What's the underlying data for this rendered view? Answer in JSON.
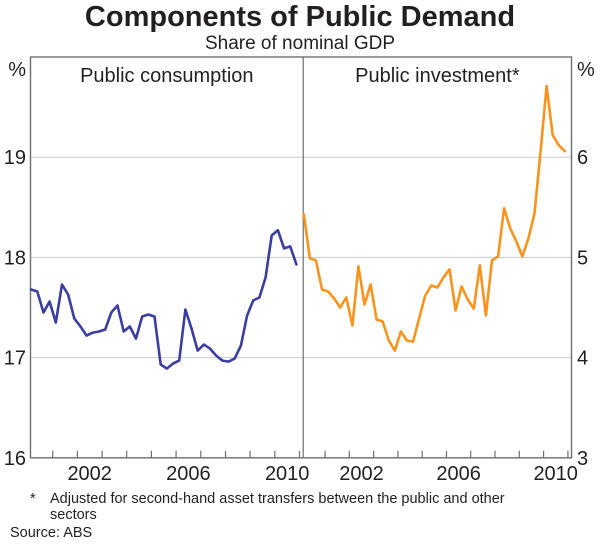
{
  "header": {
    "title": "Components of Public Demand",
    "subtitle": "Share of nominal GDP"
  },
  "chart_data": {
    "type": "line",
    "title": "Components of Public Demand",
    "subtitle": "Share of nominal GDP",
    "frequency": "quarterly",
    "grid": true,
    "x": [
      2000.125,
      2000.375,
      2000.625,
      2000.875,
      2001.125,
      2001.375,
      2001.625,
      2001.875,
      2002.125,
      2002.375,
      2002.625,
      2002.875,
      2003.125,
      2003.375,
      2003.625,
      2003.875,
      2004.125,
      2004.375,
      2004.625,
      2004.875,
      2005.125,
      2005.375,
      2005.625,
      2005.875,
      2006.125,
      2006.375,
      2006.625,
      2006.875,
      2007.125,
      2007.375,
      2007.625,
      2007.875,
      2008.125,
      2008.375,
      2008.625,
      2008.875,
      2009.125,
      2009.375,
      2009.625,
      2009.875,
      2010.125,
      2010.375,
      2010.625,
      2010.875
    ],
    "x_tick_years": [
      2001,
      2002,
      2003,
      2004,
      2005,
      2006,
      2007,
      2008,
      2009,
      2010,
      2011
    ],
    "x_tick_labels": [
      "2002",
      "2006",
      "2010"
    ],
    "panels": [
      {
        "label": "Public consumption",
        "unit": "%",
        "ylim": [
          16,
          20
        ],
        "yticks": [
          16,
          17,
          18,
          19
        ],
        "series": [
          {
            "name": "Public consumption",
            "color": "#3B3EA1",
            "values": [
              17.68,
              17.66,
              17.45,
              17.56,
              17.35,
              17.73,
              17.63,
              17.39,
              17.31,
              17.22,
              17.25,
              17.26,
              17.28,
              17.45,
              17.52,
              17.26,
              17.31,
              17.19,
              17.41,
              17.43,
              17.41,
              16.93,
              16.89,
              16.94,
              16.97,
              17.48,
              17.29,
              17.07,
              17.13,
              17.09,
              17.02,
              16.97,
              16.96,
              16.99,
              17.12,
              17.42,
              17.57,
              17.6,
              17.8,
              18.22,
              18.27,
              18.09,
              18.11,
              17.93
            ]
          }
        ]
      },
      {
        "label": "Public investment*",
        "unit": "%",
        "ylim": [
          3,
          7
        ],
        "yticks": [
          3,
          4,
          5,
          6
        ],
        "series": [
          {
            "name": "Public investment",
            "color": "#F8941D",
            "values": [
              5.43,
              4.99,
              4.97,
              4.68,
              4.66,
              4.59,
              4.5,
              4.6,
              4.32,
              4.91,
              4.53,
              4.73,
              4.38,
              4.36,
              4.17,
              4.07,
              4.26,
              4.17,
              4.16,
              4.39,
              4.62,
              4.72,
              4.7,
              4.8,
              4.88,
              4.47,
              4.71,
              4.58,
              4.49,
              4.92,
              4.42,
              4.97,
              5.01,
              5.49,
              5.29,
              5.16,
              5.01,
              5.19,
              5.44,
              6.05,
              6.71,
              6.22,
              6.12,
              6.06
            ]
          }
        ]
      }
    ]
  },
  "footnote": {
    "marker": "*",
    "text": "Adjusted for second-hand asset transfers between the public and other sectors"
  },
  "source": "Source: ABS",
  "colors": {
    "consumption_line": "#3B3EA1",
    "investment_line": "#F8941D",
    "grid": "#CBCBCB",
    "frame": "#6D6E71",
    "text": "#231F20"
  }
}
